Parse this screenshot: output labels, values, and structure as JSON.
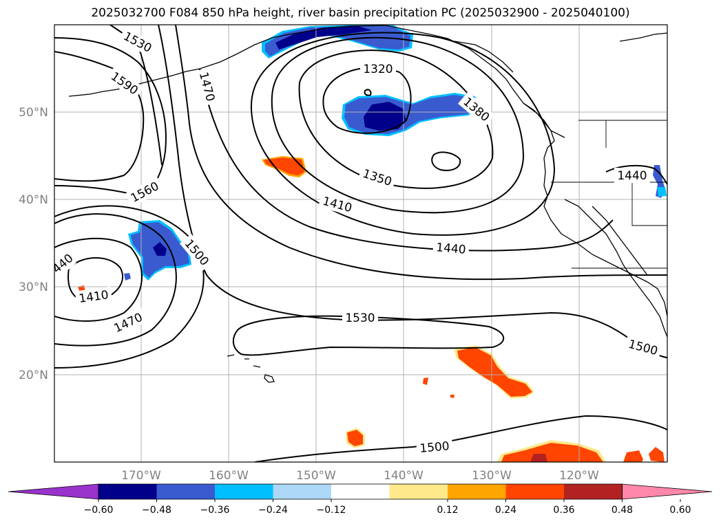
{
  "title": "2025032700 F084 850 hPa height, river basin precipitation PC (2025032900 - 2025040100)",
  "lat_labels": [
    "50°N",
    "40°N",
    "30°N",
    "20°N"
  ],
  "lon_labels": [
    "170°W",
    "160°W",
    "150°W",
    "140°W",
    "130°W",
    "120°W"
  ],
  "contour_labels": [
    "1530",
    "1590",
    "1470",
    "1320",
    "1380",
    "1560",
    "1350",
    "1410",
    "1440",
    "1500",
    "1440",
    "440",
    "1410",
    "1470",
    "1530",
    "1500",
    "1500"
  ],
  "colorbar": {
    "colors": [
      "#9933cc",
      "#00008b",
      "#3a5bd0",
      "#00bfff",
      "#add8f7",
      "#ffffff",
      "#ffe98a",
      "#ffa500",
      "#ff4500",
      "#b22222",
      "#ff88aa"
    ],
    "tick_labels": [
      "−0.60",
      "−0.48",
      "−0.36",
      "−0.24",
      "−0.12",
      "0.12",
      "0.24",
      "0.36",
      "0.48",
      "0.60"
    ]
  },
  "colors": {
    "contour": "#000000",
    "grid": "#b0b0b0",
    "coast": "#000000"
  }
}
